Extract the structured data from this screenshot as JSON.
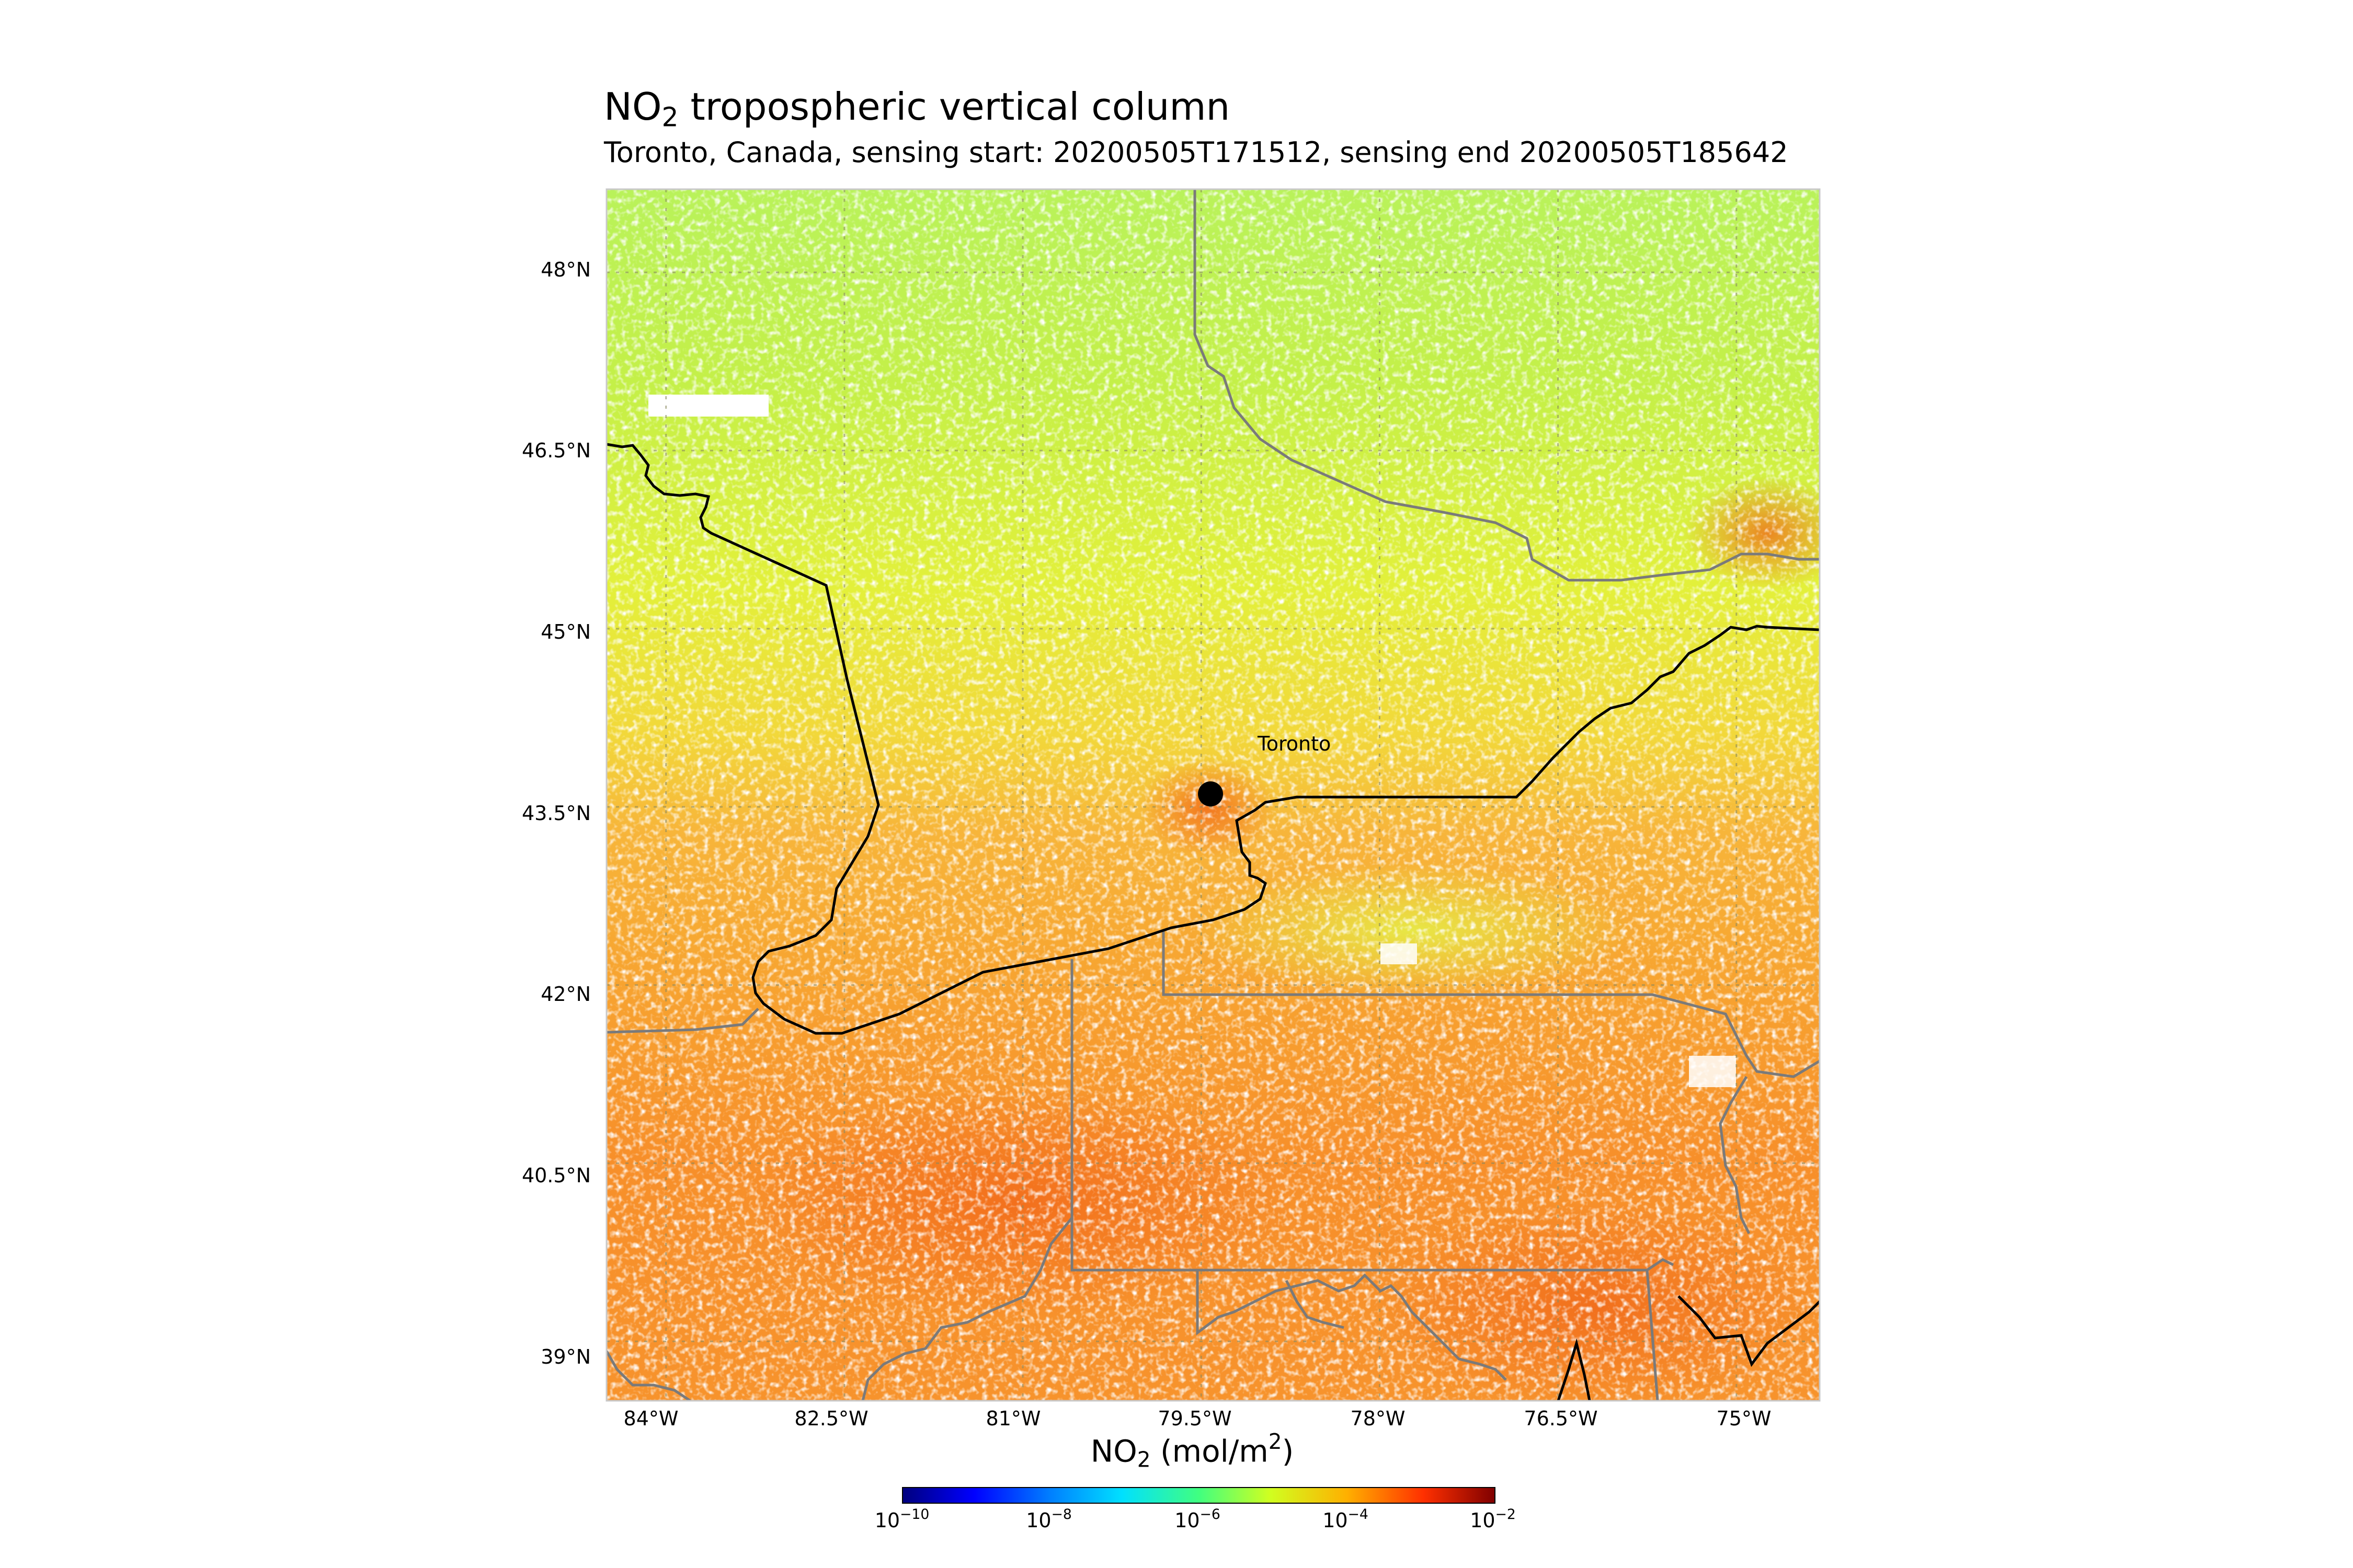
{
  "figure": {
    "title_main": "NO",
    "title_sub": "2",
    "title_rest": " tropospheric vertical column",
    "subtitle": "Toronto, Canada, sensing start: 20200505T171512, sensing end 20200505T185642"
  },
  "map": {
    "lon_range": [
      -84.5,
      -74.3
    ],
    "lat_range": [
      38.5,
      48.7
    ],
    "lat_ticks": [
      "48°N",
      "46.5°N",
      "45°N",
      "43.5°N",
      "42°N",
      "40.5°N",
      "39°N"
    ],
    "lon_ticks": [
      "84°W",
      "82.5°W",
      "81°W",
      "79.5°W",
      "78°W",
      "76.5°W",
      "75°W"
    ],
    "gridlines": true,
    "city": {
      "name": "Toronto",
      "lon": -79.38,
      "lat": 43.65
    }
  },
  "colorbar": {
    "label_main": "NO",
    "label_sub": "2",
    "label_units": " (mol/m",
    "label_sup": "2",
    "label_close": ")",
    "tick_base": "10",
    "tick_exponents": [
      "−10",
      "−8",
      "−6",
      "−4",
      "−2"
    ],
    "scale": "log",
    "colormap": "jet",
    "colors": [
      "#00007f",
      "#0000ff",
      "#0080ff",
      "#00e0ff",
      "#40ff80",
      "#d0ff20",
      "#ffb000",
      "#ff3000",
      "#800000"
    ]
  }
}
